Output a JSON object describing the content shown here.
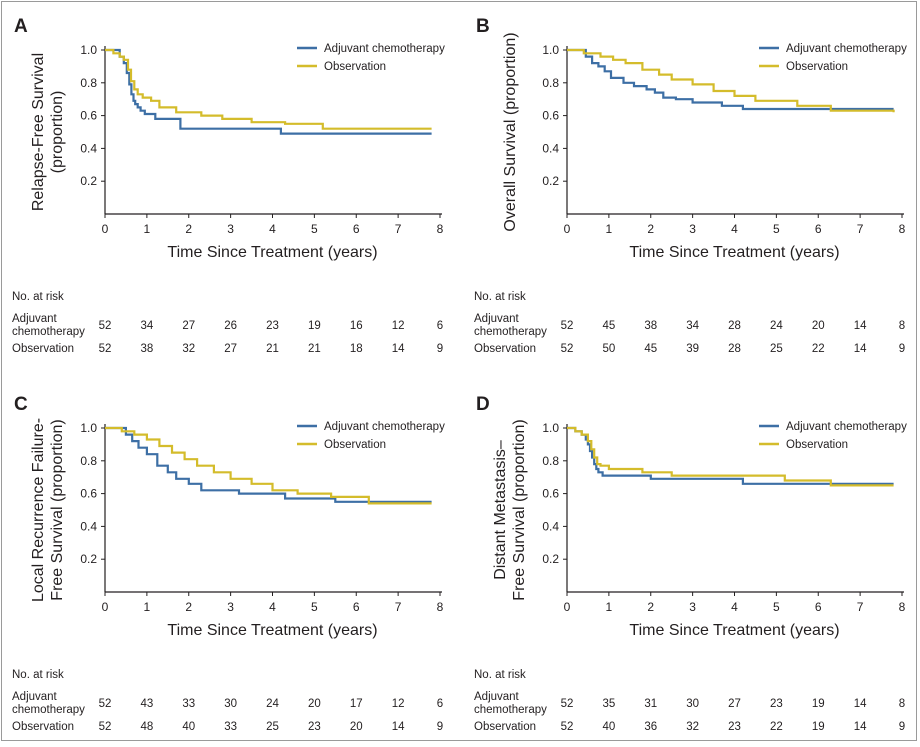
{
  "colors": {
    "adjuvant": "#3d6fa5",
    "observation": "#d4bc2b",
    "axis": "#231f20"
  },
  "risk_table": {
    "title": "No. at risk",
    "row1_label_a": "Adjuvant",
    "row1_label_b": "chemotherapy",
    "row2_label": "Observation"
  },
  "chart_data": [
    {
      "type": "line",
      "panel": "A",
      "ylabel_lines": [
        "Relapse-Free Survival",
        "(proportion)"
      ],
      "xlabel": "Time Since Treatment (years)",
      "xlim": [
        0,
        8
      ],
      "ylim": [
        0,
        1
      ],
      "xticks": [
        0,
        1,
        2,
        3,
        4,
        5,
        6,
        7,
        8
      ],
      "yticks": [
        0.2,
        0.4,
        0.6,
        0.8,
        1.0
      ],
      "ytick_labels": [
        "0.2",
        "0.4",
        "0.6",
        "0.8",
        "1.0"
      ],
      "legend_position": "top-right",
      "series": [
        {
          "name": "Adjuvant chemotherapy",
          "color_key": "adjuvant",
          "x": [
            0,
            0.12,
            0.25,
            0.35,
            0.45,
            0.52,
            0.58,
            0.63,
            0.68,
            0.72,
            0.78,
            0.85,
            0.95,
            1.05,
            1.2,
            1.35,
            1.55,
            1.8,
            2.2,
            3.0,
            4.2,
            5.2,
            6.5,
            7.8
          ],
          "y": [
            1.0,
            1.0,
            1.0,
            0.96,
            0.92,
            0.86,
            0.79,
            0.73,
            0.69,
            0.67,
            0.65,
            0.63,
            0.61,
            0.61,
            0.58,
            0.58,
            0.58,
            0.52,
            0.52,
            0.52,
            0.49,
            0.49,
            0.49,
            0.49
          ],
          "risk": [
            52,
            34,
            27,
            26,
            23,
            19,
            16,
            12,
            6
          ]
        },
        {
          "name": "Observation",
          "color_key": "observation",
          "x": [
            0,
            0.2,
            0.35,
            0.45,
            0.55,
            0.62,
            0.7,
            0.78,
            0.9,
            1.1,
            1.3,
            1.7,
            2.3,
            2.8,
            3.5,
            4.3,
            5.2,
            6.3,
            7.8
          ],
          "y": [
            1.0,
            0.98,
            0.96,
            0.94,
            0.88,
            0.81,
            0.76,
            0.73,
            0.71,
            0.69,
            0.65,
            0.62,
            0.6,
            0.58,
            0.56,
            0.55,
            0.52,
            0.52,
            0.52
          ],
          "risk": [
            52,
            38,
            32,
            27,
            21,
            21,
            18,
            14,
            9
          ]
        }
      ]
    },
    {
      "type": "line",
      "panel": "B",
      "ylabel_lines": [
        "Overall Survival (proportion)"
      ],
      "xlabel": "Time Since Treatment (years)",
      "xlim": [
        0,
        8
      ],
      "ylim": [
        0,
        1
      ],
      "xticks": [
        0,
        1,
        2,
        3,
        4,
        5,
        6,
        7,
        8
      ],
      "yticks": [
        0.2,
        0.4,
        0.6,
        0.8,
        1.0
      ],
      "ytick_labels": [
        "0.2",
        "0.4",
        "0.6",
        "0.8",
        "1.0"
      ],
      "legend_position": "top-right",
      "series": [
        {
          "name": "Adjuvant chemotherapy",
          "color_key": "adjuvant",
          "x": [
            0,
            0.3,
            0.45,
            0.6,
            0.75,
            0.9,
            1.05,
            1.35,
            1.6,
            1.9,
            2.1,
            2.3,
            2.6,
            3.0,
            3.7,
            4.2,
            5.5,
            7.8
          ],
          "y": [
            1.0,
            1.0,
            0.96,
            0.92,
            0.9,
            0.87,
            0.83,
            0.8,
            0.78,
            0.76,
            0.74,
            0.71,
            0.7,
            0.68,
            0.66,
            0.64,
            0.64,
            0.64
          ],
          "risk": [
            52,
            45,
            38,
            34,
            28,
            24,
            20,
            14,
            8
          ]
        },
        {
          "name": "Observation",
          "color_key": "observation",
          "x": [
            0,
            0.4,
            0.8,
            1.1,
            1.4,
            1.8,
            2.2,
            2.5,
            3.0,
            3.5,
            4.0,
            4.5,
            5.5,
            6.3,
            7.8
          ],
          "y": [
            1.0,
            0.98,
            0.96,
            0.94,
            0.92,
            0.88,
            0.85,
            0.82,
            0.79,
            0.75,
            0.72,
            0.69,
            0.66,
            0.63,
            0.62
          ],
          "risk": [
            52,
            50,
            45,
            39,
            28,
            25,
            22,
            14,
            9
          ]
        }
      ]
    },
    {
      "type": "line",
      "panel": "C",
      "ylabel_lines": [
        "Local Recurrence Failure-",
        "Free Survival (proportion)"
      ],
      "xlabel": "Time Since Treatment (years)",
      "xlim": [
        0,
        8
      ],
      "ylim": [
        0,
        1
      ],
      "xticks": [
        0,
        1,
        2,
        3,
        4,
        5,
        6,
        7,
        8
      ],
      "yticks": [
        0.2,
        0.4,
        0.6,
        0.8,
        1.0
      ],
      "ytick_labels": [
        "0.2",
        "0.4",
        "0.6",
        "0.8",
        "1.0"
      ],
      "legend_position": "top-right",
      "series": [
        {
          "name": "Adjuvant chemotherapy",
          "color_key": "adjuvant",
          "x": [
            0,
            0.35,
            0.5,
            0.65,
            0.8,
            1.0,
            1.25,
            1.5,
            1.7,
            2.0,
            2.3,
            3.2,
            4.3,
            5.5,
            6.3,
            7.8
          ],
          "y": [
            1.0,
            1.0,
            0.96,
            0.92,
            0.88,
            0.84,
            0.77,
            0.73,
            0.69,
            0.66,
            0.62,
            0.6,
            0.57,
            0.55,
            0.55,
            0.55
          ],
          "risk": [
            52,
            43,
            33,
            30,
            24,
            20,
            17,
            12,
            6
          ]
        },
        {
          "name": "Observation",
          "color_key": "observation",
          "x": [
            0,
            0.4,
            0.7,
            1.0,
            1.3,
            1.6,
            1.9,
            2.2,
            2.6,
            3.0,
            3.5,
            4.0,
            4.6,
            5.4,
            6.3,
            7.8
          ],
          "y": [
            1.0,
            0.98,
            0.96,
            0.93,
            0.89,
            0.85,
            0.81,
            0.77,
            0.73,
            0.69,
            0.66,
            0.62,
            0.6,
            0.58,
            0.54,
            0.54
          ],
          "risk": [
            52,
            48,
            40,
            33,
            25,
            23,
            20,
            14,
            9
          ]
        }
      ]
    },
    {
      "type": "line",
      "panel": "D",
      "ylabel_lines": [
        "Distant Metastasis–",
        "Free Survival (proportion)"
      ],
      "xlabel": "Time Since Treatment (years)",
      "xlim": [
        0,
        8
      ],
      "ylim": [
        0,
        1
      ],
      "xticks": [
        0,
        1,
        2,
        3,
        4,
        5,
        6,
        7,
        8
      ],
      "yticks": [
        0.2,
        0.4,
        0.6,
        0.8,
        1.0
      ],
      "ytick_labels": [
        "0.2",
        "0.4",
        "0.6",
        "0.8",
        "1.0"
      ],
      "legend_position": "top-right",
      "series": [
        {
          "name": "Adjuvant chemotherapy",
          "color_key": "adjuvant",
          "x": [
            0,
            0.2,
            0.35,
            0.45,
            0.5,
            0.55,
            0.6,
            0.65,
            0.7,
            0.75,
            0.85,
            1.0,
            1.4,
            2.0,
            2.6,
            3.4,
            4.2,
            5.3,
            6.5,
            7.8
          ],
          "y": [
            1.0,
            0.98,
            0.96,
            0.93,
            0.9,
            0.86,
            0.82,
            0.78,
            0.75,
            0.73,
            0.71,
            0.71,
            0.71,
            0.69,
            0.69,
            0.69,
            0.66,
            0.66,
            0.66,
            0.66
          ],
          "risk": [
            52,
            35,
            31,
            30,
            27,
            23,
            19,
            14,
            8
          ]
        },
        {
          "name": "Observation",
          "color_key": "observation",
          "x": [
            0,
            0.2,
            0.35,
            0.5,
            0.58,
            0.65,
            0.72,
            0.8,
            1.0,
            1.3,
            1.8,
            2.5,
            3.5,
            5.2,
            6.3,
            7.8
          ],
          "y": [
            1.0,
            0.98,
            0.96,
            0.92,
            0.87,
            0.82,
            0.78,
            0.77,
            0.75,
            0.75,
            0.73,
            0.71,
            0.71,
            0.68,
            0.65,
            0.65
          ],
          "risk": [
            52,
            40,
            36,
            32,
            23,
            22,
            19,
            14,
            9
          ]
        }
      ]
    }
  ]
}
